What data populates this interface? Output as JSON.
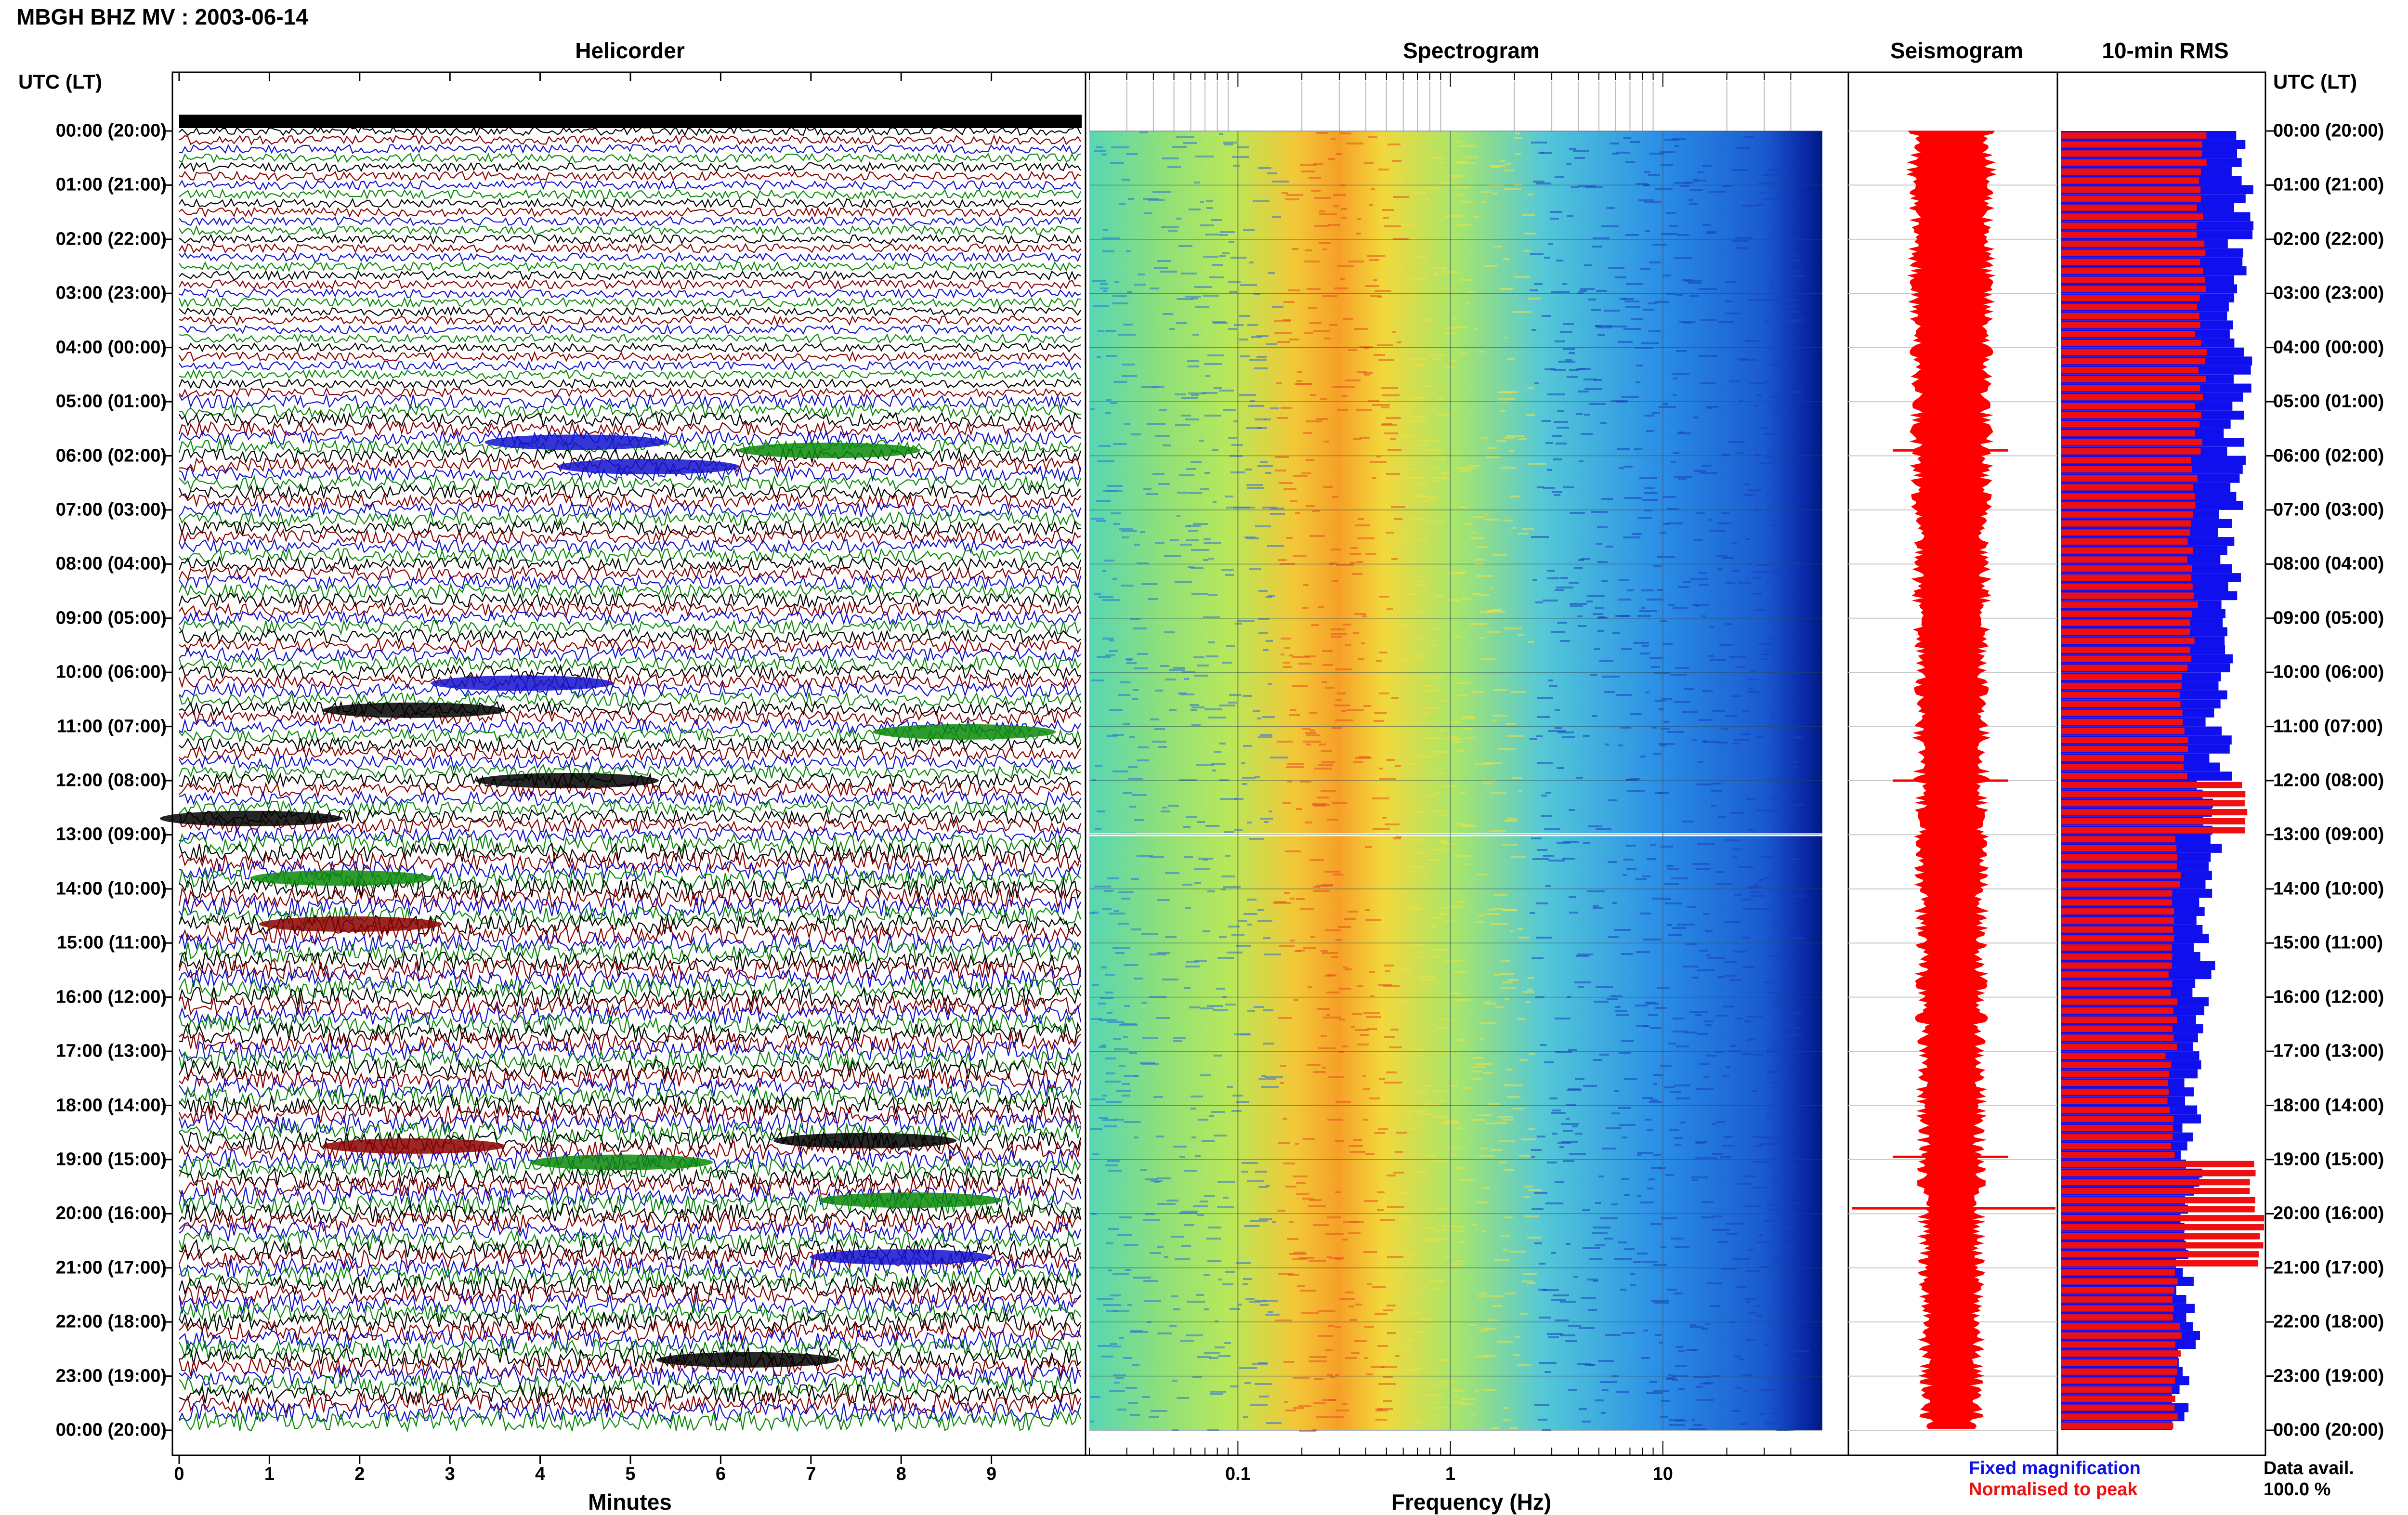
{
  "title": "MBGH BHZ MV : 2003-06-14",
  "panels": {
    "helicorder": "Helicorder",
    "spectrogram": "Spectrogram",
    "seismogram": "Seismogram",
    "rms": "10-min RMS"
  },
  "utc_header": "UTC (LT)",
  "time_labels": [
    "00:00 (20:00)",
    "01:00 (21:00)",
    "02:00 (22:00)",
    "03:00 (23:00)",
    "04:00 (00:00)",
    "05:00 (01:00)",
    "06:00 (02:00)",
    "07:00 (03:00)",
    "08:00 (04:00)",
    "09:00 (05:00)",
    "10:00 (06:00)",
    "11:00 (07:00)",
    "12:00 (08:00)",
    "13:00 (09:00)",
    "14:00 (10:00)",
    "15:00 (11:00)",
    "16:00 (12:00)",
    "17:00 (13:00)",
    "18:00 (14:00)",
    "19:00 (15:00)",
    "20:00 (16:00)",
    "21:00 (17:00)",
    "22:00 (18:00)",
    "23:00 (19:00)",
    "00:00 (20:00)"
  ],
  "minutes_axis": {
    "label": "Minutes",
    "ticks": [
      "0",
      "1",
      "2",
      "3",
      "4",
      "5",
      "6",
      "7",
      "8",
      "9"
    ]
  },
  "frequency_axis": {
    "label": "Frequency (Hz)",
    "ticks": [
      "0.1",
      "1",
      "10"
    ]
  },
  "legend": {
    "fixed": "Fixed magnification",
    "normalised": "Normalised to peak"
  },
  "data_availability": {
    "label": "Data avail.",
    "value": "100.0 %"
  },
  "colors": {
    "black": "#000000",
    "red": "#8b0000",
    "blue": "#1010d0",
    "green": "#0a8a0a",
    "rms_fixed": "#1010ee",
    "rms_norm": "#ee1010",
    "seismogram": "#ff0000"
  },
  "chart_data": {
    "type": "heatmap",
    "x_units": "minutes",
    "x_range": [
      0,
      10
    ],
    "frequency_range_hz": [
      0.02,
      50
    ],
    "frequency_scale": "log",
    "time_range_hours": [
      0,
      24
    ],
    "helicorder_colors": [
      "black",
      "red",
      "blue",
      "green"
    ],
    "helicorder_events": [
      {
        "hour": 5.75,
        "minute": 4.4,
        "color": "blue"
      },
      {
        "hour": 5.9,
        "minute": 7.2,
        "color": "green"
      },
      {
        "hour": 6.2,
        "minute": 5.2,
        "color": "blue"
      },
      {
        "hour": 10.2,
        "minute": 3.8,
        "color": "blue"
      },
      {
        "hour": 10.7,
        "minute": 2.6,
        "color": "black"
      },
      {
        "hour": 11.1,
        "minute": 8.7,
        "color": "green"
      },
      {
        "hour": 12.0,
        "minute": 4.3,
        "color": "black"
      },
      {
        "hour": 12.7,
        "minute": 0.8,
        "color": "black"
      },
      {
        "hour": 13.8,
        "minute": 1.8,
        "color": "green"
      },
      {
        "hour": 14.65,
        "minute": 1.9,
        "color": "red"
      },
      {
        "hour": 18.65,
        "minute": 7.6,
        "color": "black"
      },
      {
        "hour": 18.75,
        "minute": 2.6,
        "color": "red"
      },
      {
        "hour": 19.05,
        "minute": 4.9,
        "color": "green"
      },
      {
        "hour": 19.75,
        "minute": 8.1,
        "color": "green"
      },
      {
        "hour": 20.8,
        "minute": 8.0,
        "color": "blue"
      },
      {
        "hour": 22.7,
        "minute": 6.3,
        "color": "black"
      }
    ],
    "spectrogram_peak_band_hz": [
      0.2,
      0.5
    ],
    "spectrogram_gap_hour": 13.0,
    "seismogram_spikes_hours": [
      5.9,
      12.0,
      18.95,
      19.9
    ],
    "rms_fixed": [
      0.88,
      0.9,
      0.87,
      0.86,
      0.89,
      0.84,
      0.85,
      0.8,
      0.83,
      0.82,
      0.76,
      0.78,
      0.7,
      0.74,
      0.72,
      0.7,
      0.68,
      0.66,
      0.64,
      0.66,
      0.62,
      0.6,
      0.63,
      0.6
    ],
    "rms_normalised": [
      0.7,
      0.69,
      0.7,
      0.68,
      0.7,
      0.68,
      0.66,
      0.64,
      0.66,
      0.64,
      0.6,
      0.62,
      0.9,
      0.58,
      0.56,
      0.54,
      0.56,
      0.53,
      0.55,
      0.95,
      1.0,
      0.56,
      0.58,
      0.56
    ]
  }
}
